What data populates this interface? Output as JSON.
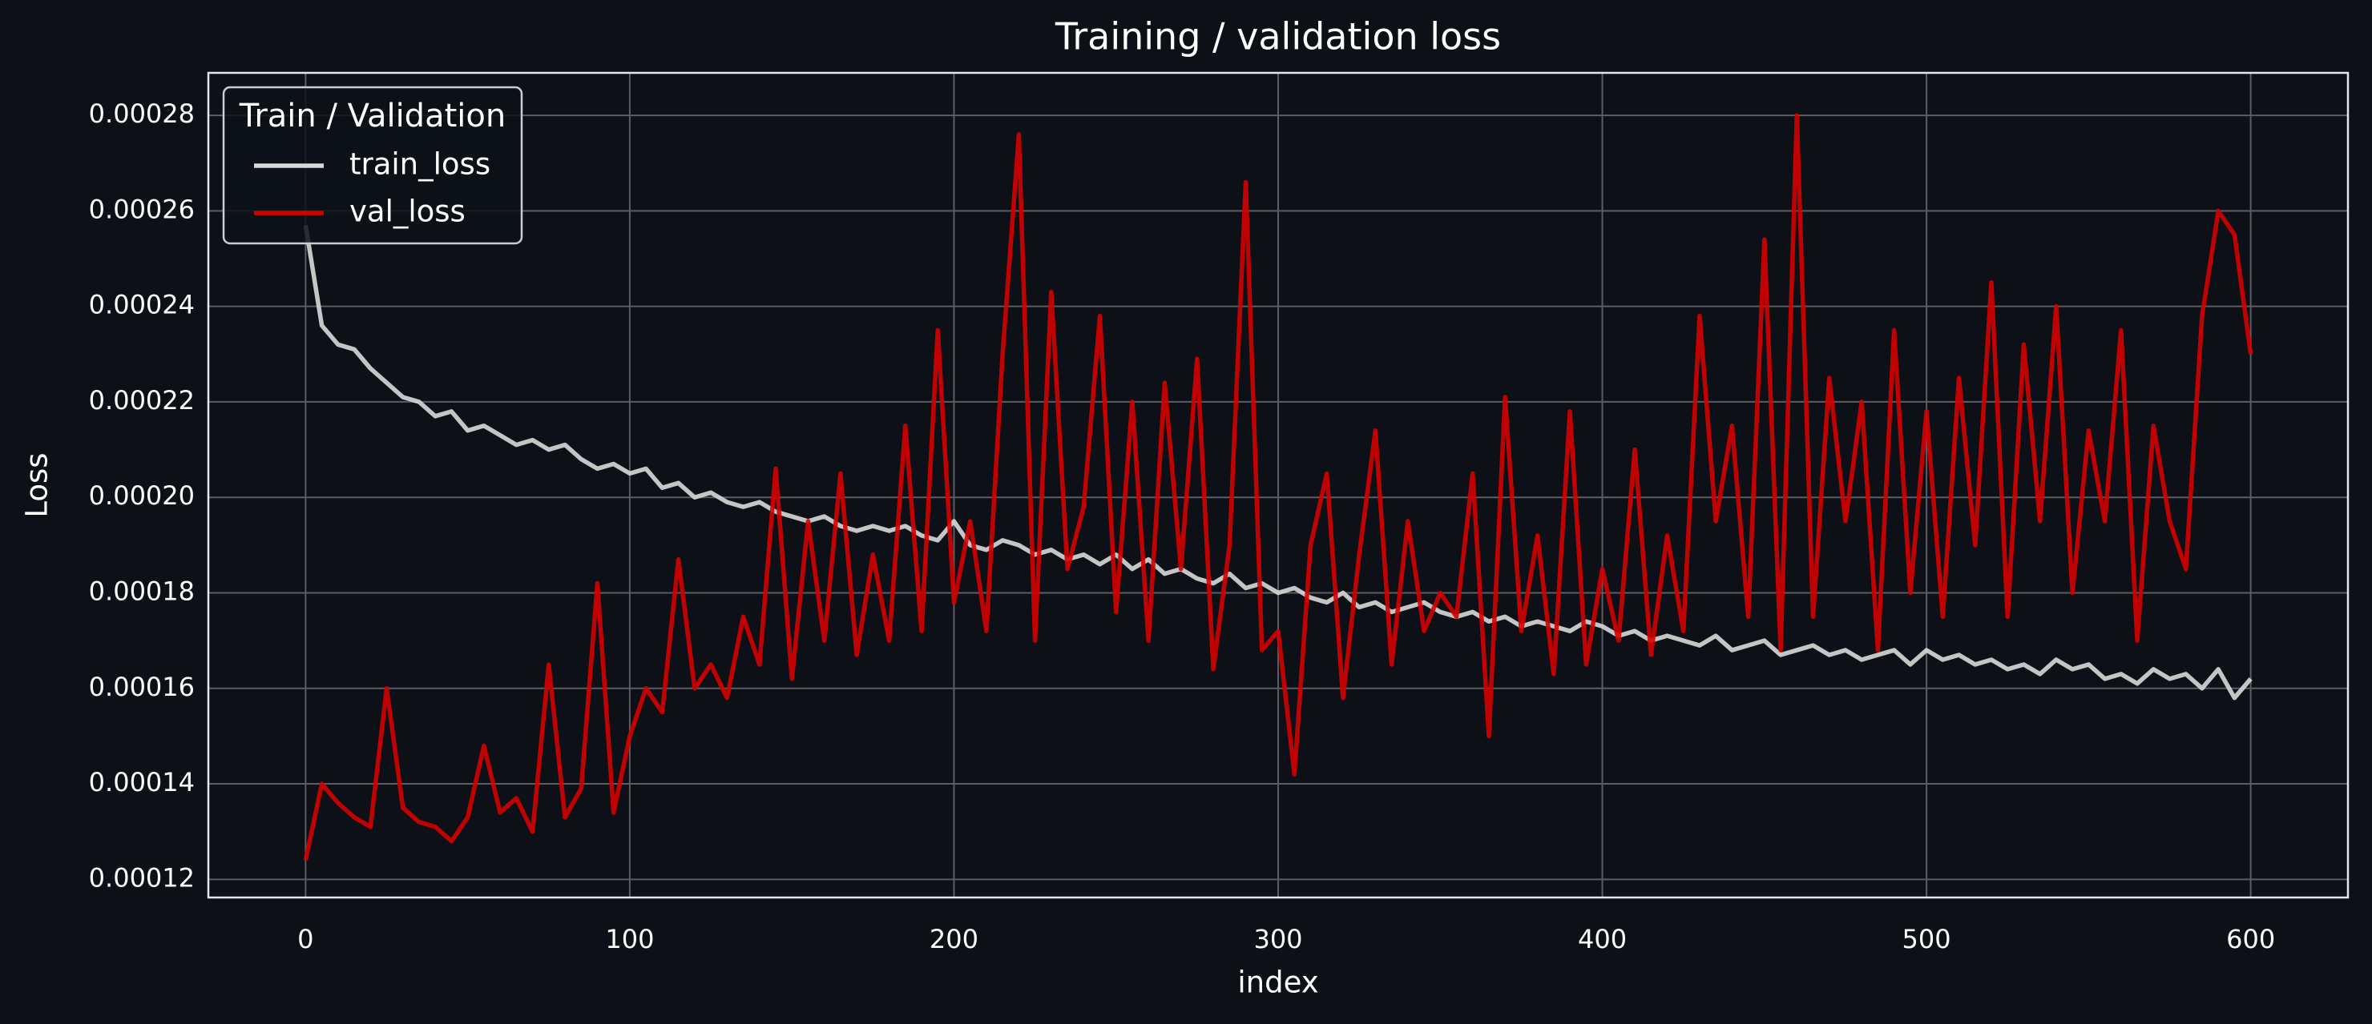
{
  "chart_data": {
    "type": "line",
    "title": "Training / validation loss",
    "x_label": "index",
    "y_label": "Loss",
    "legend_title": "Train / Validation",
    "legend": "upper left",
    "grid": true,
    "x": [
      0,
      5,
      10,
      15,
      20,
      25,
      30,
      35,
      40,
      45,
      50,
      55,
      60,
      65,
      70,
      75,
      80,
      85,
      90,
      95,
      100,
      105,
      110,
      115,
      120,
      125,
      130,
      135,
      140,
      145,
      150,
      155,
      160,
      165,
      170,
      175,
      180,
      185,
      190,
      195,
      200,
      205,
      210,
      215,
      220,
      225,
      230,
      235,
      240,
      245,
      250,
      255,
      260,
      265,
      270,
      275,
      280,
      285,
      290,
      295,
      300,
      305,
      310,
      315,
      320,
      325,
      330,
      335,
      340,
      345,
      350,
      355,
      360,
      365,
      370,
      375,
      380,
      385,
      390,
      395,
      400,
      405,
      410,
      415,
      420,
      425,
      430,
      435,
      440,
      445,
      450,
      455,
      460,
      465,
      470,
      475,
      480,
      485,
      490,
      495,
      500,
      505,
      510,
      515,
      520,
      525,
      530,
      535,
      540,
      545,
      550,
      555,
      560,
      565,
      570,
      575,
      580,
      585,
      590,
      595,
      600
    ],
    "series": [
      {
        "name": "train_loss",
        "color": "#d9d9d9",
        "values": [
          0.000257,
          0.000236,
          0.000232,
          0.000231,
          0.000227,
          0.000224,
          0.000221,
          0.00022,
          0.000217,
          0.000218,
          0.000214,
          0.000215,
          0.000213,
          0.000211,
          0.000212,
          0.00021,
          0.000211,
          0.000208,
          0.000206,
          0.000207,
          0.000205,
          0.000206,
          0.000202,
          0.000203,
          0.0002,
          0.000201,
          0.000199,
          0.000198,
          0.000199,
          0.000197,
          0.000196,
          0.000195,
          0.000196,
          0.000194,
          0.000193,
          0.000194,
          0.000193,
          0.000194,
          0.000192,
          0.000191,
          0.000195,
          0.00019,
          0.000189,
          0.000191,
          0.00019,
          0.000188,
          0.000189,
          0.000187,
          0.000188,
          0.000186,
          0.000188,
          0.000185,
          0.000187,
          0.000184,
          0.000185,
          0.000183,
          0.000182,
          0.000184,
          0.000181,
          0.000182,
          0.00018,
          0.000181,
          0.000179,
          0.000178,
          0.00018,
          0.000177,
          0.000178,
          0.000176,
          0.000177,
          0.000178,
          0.000176,
          0.000175,
          0.000176,
          0.000174,
          0.000175,
          0.000173,
          0.000174,
          0.000173,
          0.000172,
          0.000174,
          0.000173,
          0.000171,
          0.000172,
          0.00017,
          0.000171,
          0.00017,
          0.000169,
          0.000171,
          0.000168,
          0.000169,
          0.00017,
          0.000167,
          0.000168,
          0.000169,
          0.000167,
          0.000168,
          0.000166,
          0.000167,
          0.000168,
          0.000165,
          0.000168,
          0.000166,
          0.000167,
          0.000165,
          0.000166,
          0.000164,
          0.000165,
          0.000163,
          0.000166,
          0.000164,
          0.000165,
          0.000162,
          0.000163,
          0.000161,
          0.000164,
          0.000162,
          0.000163,
          0.00016,
          0.000164,
          0.000158,
          0.000162
        ]
      },
      {
        "name": "val_loss",
        "color": "#d40000",
        "values": [
          0.000124,
          0.00014,
          0.000136,
          0.000133,
          0.000131,
          0.00016,
          0.000135,
          0.000132,
          0.000131,
          0.000128,
          0.000133,
          0.000148,
          0.000134,
          0.000137,
          0.00013,
          0.000165,
          0.000133,
          0.000139,
          0.000182,
          0.000134,
          0.00015,
          0.00016,
          0.000155,
          0.000187,
          0.00016,
          0.000165,
          0.000158,
          0.000175,
          0.000165,
          0.000206,
          0.000162,
          0.000195,
          0.00017,
          0.000205,
          0.000167,
          0.000188,
          0.00017,
          0.000215,
          0.000172,
          0.000235,
          0.000178,
          0.000195,
          0.000172,
          0.00023,
          0.000276,
          0.00017,
          0.000243,
          0.000185,
          0.000198,
          0.000238,
          0.000176,
          0.00022,
          0.00017,
          0.000224,
          0.000185,
          0.000229,
          0.000164,
          0.00019,
          0.000266,
          0.000168,
          0.000172,
          0.000142,
          0.00019,
          0.000205,
          0.000158,
          0.000188,
          0.000214,
          0.000165,
          0.000195,
          0.000172,
          0.00018,
          0.000175,
          0.000205,
          0.00015,
          0.000221,
          0.000172,
          0.000192,
          0.000163,
          0.000218,
          0.000165,
          0.000185,
          0.00017,
          0.00021,
          0.000167,
          0.000192,
          0.000172,
          0.000238,
          0.000195,
          0.000215,
          0.000175,
          0.000254,
          0.000168,
          0.00028,
          0.000175,
          0.000225,
          0.000195,
          0.00022,
          0.000168,
          0.000235,
          0.00018,
          0.000218,
          0.000175,
          0.000225,
          0.00019,
          0.000245,
          0.000175,
          0.000232,
          0.000195,
          0.00024,
          0.00018,
          0.000214,
          0.000195,
          0.000235,
          0.00017,
          0.000215,
          0.000195,
          0.000185,
          0.000238,
          0.00026,
          0.000255,
          0.00023
        ]
      }
    ],
    "xlim": [
      -30,
      630
    ],
    "xticks": [
      0,
      100,
      200,
      300,
      400,
      500,
      600
    ],
    "ylim": [
      0.0001162,
      0.0002889
    ],
    "yticks": [
      0.00012,
      0.00014,
      0.00016,
      0.00018,
      {
        "value": 0.0002,
        "label": "0.00020"
      },
      0.00022,
      0.00024,
      0.00026,
      0.00028
    ]
  }
}
